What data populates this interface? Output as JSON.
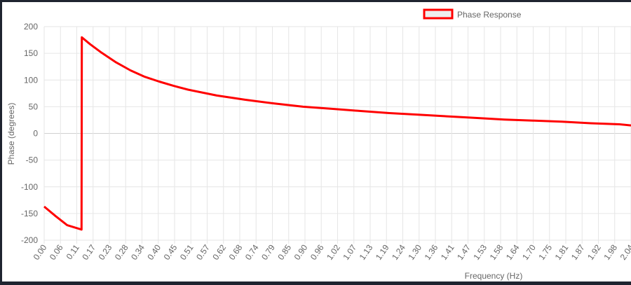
{
  "chart_data": {
    "type": "line",
    "xlabel": "Frequency (Hz)",
    "ylabel": "Phase (degrees)",
    "ylim": [
      -200,
      200
    ],
    "y_ticks": [
      200,
      150,
      100,
      50,
      0,
      -50,
      -100,
      -150,
      -200
    ],
    "x_tick_labels": [
      "0.00",
      "0.06",
      "0.11",
      "0.17",
      "0.23",
      "0.28",
      "0.34",
      "0.40",
      "0.45",
      "0.51",
      "0.57",
      "0.62",
      "0.68",
      "0.74",
      "0.79",
      "0.85",
      "0.90",
      "0.96",
      "1.02",
      "1.07",
      "1.13",
      "1.19",
      "1.24",
      "1.30",
      "1.36",
      "1.41",
      "1.47",
      "1.53",
      "1.58",
      "1.64",
      "1.70",
      "1.75",
      "1.81",
      "1.87",
      "1.92",
      "1.98",
      "2.04"
    ],
    "grid": true,
    "legend_position": "top",
    "series": [
      {
        "name": "Phase Response",
        "color": "#ff0000",
        "x": [
          0.0,
          0.04,
          0.08,
          0.13,
          0.131,
          0.16,
          0.2,
          0.25,
          0.3,
          0.35,
          0.4,
          0.45,
          0.5,
          0.6,
          0.7,
          0.8,
          0.9,
          1.0,
          1.1,
          1.2,
          1.3,
          1.4,
          1.5,
          1.6,
          1.7,
          1.8,
          1.9,
          2.0,
          2.04
        ],
        "y": [
          -137,
          -155,
          -172,
          -180,
          180,
          167,
          151,
          133,
          118,
          106,
          97,
          89,
          82,
          71,
          63,
          56,
          50,
          46,
          42,
          38,
          35,
          32,
          29,
          26,
          24,
          22,
          19,
          17,
          15
        ]
      }
    ]
  }
}
